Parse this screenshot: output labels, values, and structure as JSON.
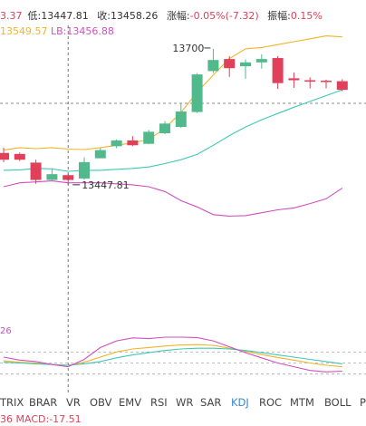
{
  "header": {
    "prev_fragment": "3.37",
    "low_label": "低:",
    "low_value": "13447.81",
    "close_label": "收:",
    "close_value": "13458.26",
    "change_label": "涨幅:",
    "change_value": "-0.05%(-7.32)",
    "amplitude_label": "振幅:",
    "amplitude_value": "0.15%"
  },
  "boll_line": {
    "up_fragment": "13549.57",
    "lb_label": "LB:",
    "lb_value": "13456.88"
  },
  "annotations": {
    "high_marker": "13700",
    "low_marker": "13447.81"
  },
  "kdj_value": "26",
  "macd": {
    "prefix": "36",
    "label": "MACD:",
    "value": "-17.51"
  },
  "tabs": [
    "TRIX",
    "BRAR",
    "VR",
    "OBV",
    "EMV",
    "RSI",
    "WR",
    "SAR",
    "KDJ",
    "ROC",
    "MTM",
    "BOLL",
    "PS"
  ],
  "active_tab": "KDJ",
  "colors": {
    "up": "#52b98c",
    "down": "#e0405a",
    "upper": "#f0b429",
    "mid": "#3fc8b8",
    "lower": "#d14fbf",
    "active_tab": "#3b86d8"
  },
  "chart_data": {
    "type": "candlestick",
    "price_range": [
      13380,
      13760
    ],
    "candles": [
      {
        "open": 13514,
        "close": 13500,
        "high": 13525,
        "low": 13495
      },
      {
        "open": 13512,
        "close": 13500,
        "high": 13515,
        "low": 13497
      },
      {
        "open": 13494,
        "close": 13458,
        "high": 13500,
        "low": 13450
      },
      {
        "open": 13458,
        "close": 13470,
        "high": 13480,
        "low": 13455
      },
      {
        "open": 13468,
        "close": 13458,
        "high": 13471,
        "low": 13448
      },
      {
        "open": 13461,
        "close": 13495,
        "high": 13505,
        "low": 13458
      },
      {
        "open": 13503,
        "close": 13520,
        "high": 13524,
        "low": 13503
      },
      {
        "open": 13528,
        "close": 13540,
        "high": 13542,
        "low": 13524
      },
      {
        "open": 13540,
        "close": 13530,
        "high": 13549,
        "low": 13528
      },
      {
        "open": 13533,
        "close": 13558,
        "high": 13562,
        "low": 13532
      },
      {
        "open": 13555,
        "close": 13575,
        "high": 13580,
        "low": 13553
      },
      {
        "open": 13568,
        "close": 13600,
        "high": 13616,
        "low": 13566
      },
      {
        "open": 13599,
        "close": 13677,
        "high": 13680,
        "low": 13597
      },
      {
        "open": 13684,
        "close": 13707,
        "high": 13730,
        "low": 13680
      },
      {
        "open": 13709,
        "close": 13690,
        "high": 13715,
        "low": 13672
      },
      {
        "open": 13694,
        "close": 13702,
        "high": 13708,
        "low": 13668
      },
      {
        "open": 13702,
        "close": 13709,
        "high": 13719,
        "low": 13689
      },
      {
        "open": 13711,
        "close": 13659,
        "high": 13715,
        "low": 13647
      },
      {
        "open": 13669,
        "close": 13665,
        "high": 13681,
        "low": 13649
      },
      {
        "open": 13665,
        "close": 13662,
        "high": 13671,
        "low": 13648
      },
      {
        "open": 13664,
        "close": 13662,
        "high": 13666,
        "low": 13648
      },
      {
        "open": 13663,
        "close": 13645,
        "high": 13667,
        "low": 13642
      }
    ],
    "boll_upper": [
      13520,
      13525,
      13523,
      13525,
      13522,
      13521,
      13525,
      13530,
      13535,
      13542,
      13565,
      13598,
      13640,
      13676,
      13710,
      13730,
      13733,
      13739,
      13745,
      13751,
      13757,
      13755
    ],
    "boll_mid": [
      13478,
      13479,
      13482,
      13481,
      13476,
      13478,
      13478,
      13480,
      13482,
      13485,
      13492,
      13500,
      13511,
      13530,
      13550,
      13568,
      13583,
      13596,
      13609,
      13621,
      13633,
      13645
    ],
    "boll_lower": [
      13444,
      13452,
      13454,
      13456,
      13452,
      13452,
      13452,
      13450,
      13448,
      13444,
      13434,
      13415,
      13402,
      13386,
      13383,
      13384,
      13390,
      13396,
      13400,
      13409,
      13419,
      13441
    ],
    "kdj_range": [
      -10,
      120
    ],
    "kdj_k": [
      56,
      52,
      50,
      46,
      44,
      52,
      66,
      80,
      88,
      92,
      96,
      99,
      100,
      98,
      90,
      82,
      73,
      65,
      58,
      50,
      44,
      40
    ],
    "kdj_d": [
      52,
      50,
      48,
      46,
      44,
      48,
      54,
      64,
      72,
      78,
      84,
      88,
      90,
      90,
      88,
      84,
      78,
      72,
      66,
      60,
      54,
      48
    ],
    "kdj_j": [
      66,
      58,
      54,
      46,
      40,
      60,
      92,
      110,
      118,
      116,
      120,
      120,
      119,
      110,
      94,
      78,
      64,
      50,
      40,
      30,
      26,
      28
    ],
    "kdj_ref_levels": [
      20,
      50,
      80
    ],
    "crosshair_index": 4
  }
}
